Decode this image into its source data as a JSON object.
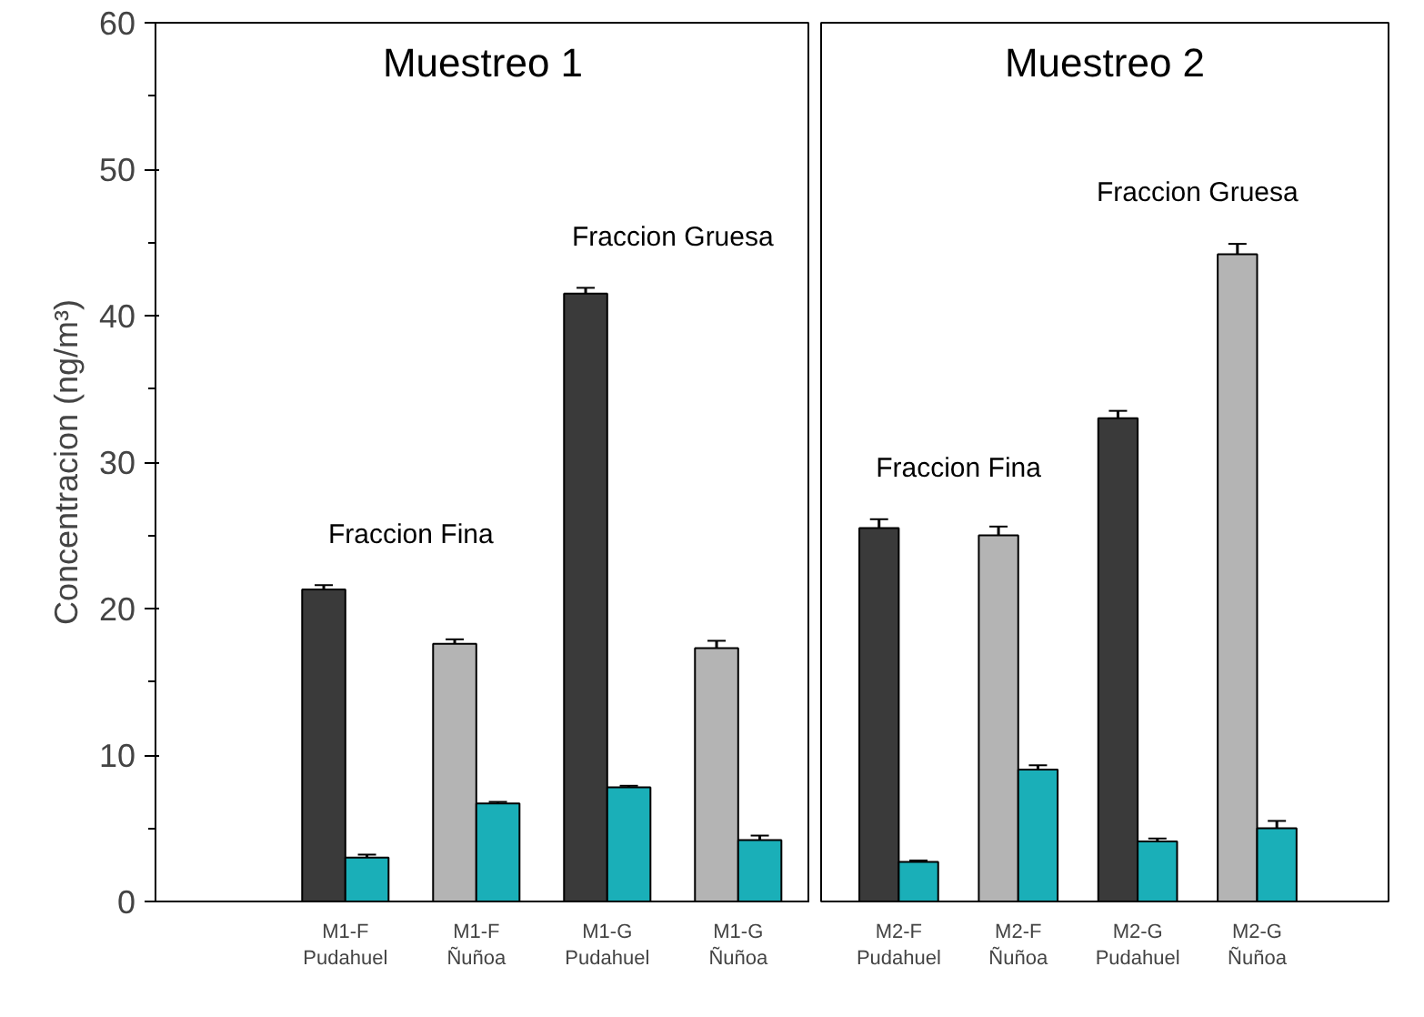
{
  "chart_data": [
    {
      "type": "bar",
      "title": "Muestreo 1",
      "ylabel": "Concentracion (ng/m³)",
      "categories": [
        "M1-F\nPudahuel",
        "M1-F\nÑuñoa",
        "M1-G\nPudahuel",
        "M1-G\nÑuñoa"
      ],
      "series": [
        {
          "colors": [
            "#3a3a3a",
            "#b4b4b4",
            "#3a3a3a",
            "#b4b4b4"
          ],
          "values": [
            21.3,
            17.6,
            41.5,
            17.3
          ],
          "errors": [
            0.3,
            0.3,
            0.4,
            0.5
          ]
        },
        {
          "color": "#1aafb8",
          "values": [
            3.0,
            6.7,
            7.8,
            4.2
          ],
          "errors": [
            0.2,
            0.1,
            0.1,
            0.3
          ]
        }
      ],
      "ylim": [
        0,
        60
      ],
      "yticks": [
        0,
        10,
        20,
        30,
        40,
        50,
        60
      ],
      "annotations": [
        "Fraccion Fina",
        "Fraccion Gruesa"
      ],
      "grid": false
    },
    {
      "type": "bar",
      "title": "Muestreo 2",
      "categories": [
        "M2-F\nPudahuel",
        "M2-F\nÑuñoa",
        "M2-G\nPudahuel",
        "M2-G\nÑuñoa"
      ],
      "series": [
        {
          "colors": [
            "#3a3a3a",
            "#b4b4b4",
            "#3a3a3a",
            "#b4b4b4"
          ],
          "values": [
            25.5,
            25.0,
            33.0,
            44.2
          ],
          "errors": [
            0.6,
            0.6,
            0.5,
            0.7
          ]
        },
        {
          "color": "#1aafb8",
          "values": [
            2.7,
            9.0,
            4.1,
            5.0
          ],
          "errors": [
            0.1,
            0.3,
            0.2,
            0.5
          ]
        }
      ],
      "ylim": [
        0,
        60
      ],
      "yticks": [
        0,
        10,
        20,
        30,
        40,
        50,
        60
      ],
      "annotations": [
        "Fraccion Fina",
        "Fraccion Gruesa"
      ],
      "grid": false,
      "tick_labels": "x"
    }
  ]
}
